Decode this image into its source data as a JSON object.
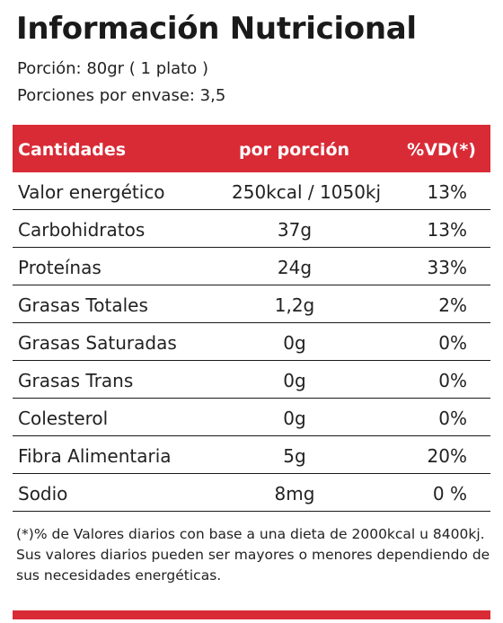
{
  "title": "Información Nutricional",
  "serving_size": "Porción: 80gr ( 1 plato )",
  "servings_per_container": "Porciones por envase: 3,5",
  "table": {
    "headers": [
      "Cantidades",
      "por porción",
      "%VD(*)"
    ],
    "rows": [
      {
        "name": "Valor energético",
        "amount": "250kcal / 1050kj",
        "dv": "13%"
      },
      {
        "name": "Carbohidratos",
        "amount": "37g",
        "dv": "13%"
      },
      {
        "name": "Proteínas",
        "amount": "24g",
        "dv": "33%"
      },
      {
        "name": "Grasas Totales",
        "amount": "1,2g",
        "dv": "2%"
      },
      {
        "name": "Grasas Saturadas",
        "amount": "0g",
        "dv": "0%"
      },
      {
        "name": "Grasas Trans",
        "amount": "0g",
        "dv": "0%"
      },
      {
        "name": "Colesterol",
        "amount": "0g",
        "dv": "0%"
      },
      {
        "name": "Fibra Alimentaria",
        "amount": "5g",
        "dv": "20%"
      },
      {
        "name": "Sodio",
        "amount": "8mg",
        "dv": "0 %"
      }
    ]
  },
  "footnote": "(*)% de Valores diarios con base a una dieta de 2000kcal u 8400kj.  Sus valores diarios pueden ser mayores o menores dependiendo  de sus necesidades energéticas.",
  "colors": {
    "accent": "#d92b36",
    "text": "#1a1a1a"
  }
}
